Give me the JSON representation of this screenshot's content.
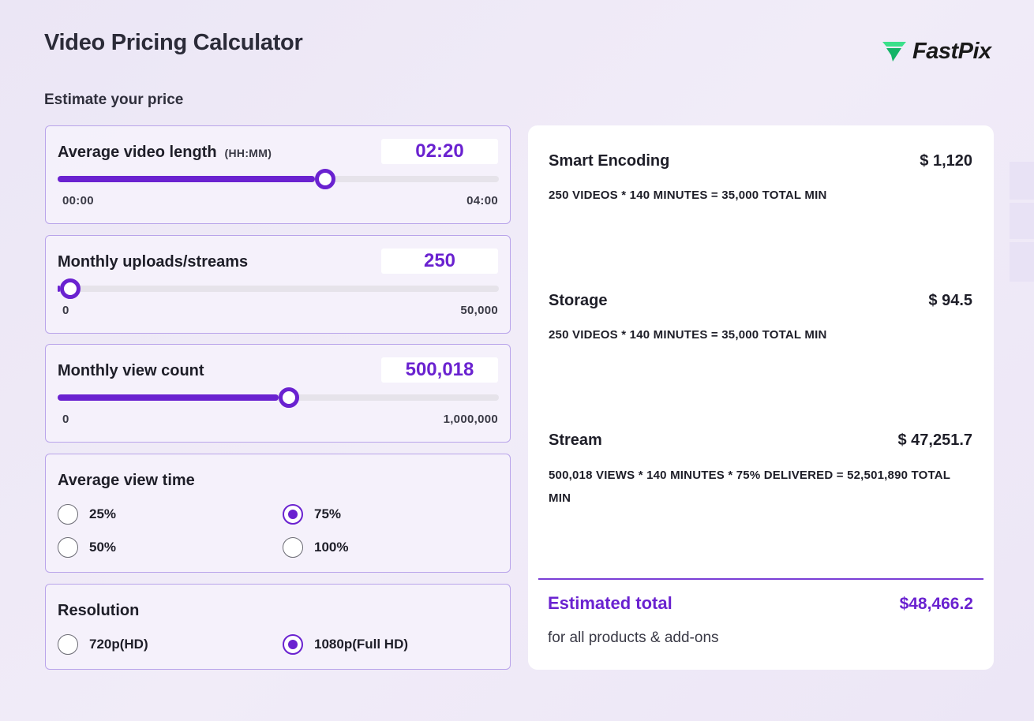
{
  "header": {
    "title": "Video Pricing Calculator",
    "brand": "FastPix",
    "subtitle": "Estimate your price"
  },
  "brand_colors": {
    "accent": "#6a22d0",
    "logo_green_light": "#3be08a",
    "logo_green_dark": "#14b467"
  },
  "icons": {
    "logo": "fastpix-logo-icon"
  },
  "controls": {
    "video_length": {
      "label": "Average video length",
      "hint": "(HH:MM)",
      "value": "02:20",
      "min": "00:00",
      "max": "04:00",
      "fraction": 0.583
    },
    "uploads": {
      "label": "Monthly uploads/streams",
      "value": "250",
      "min": "0",
      "max": "50,000",
      "fraction": 0.005
    },
    "views": {
      "label": "Monthly view count",
      "value": "500,018",
      "min": "0",
      "max": "1,000,000",
      "fraction": 0.5
    },
    "view_time": {
      "label": "Average view time",
      "options": [
        "25%",
        "50%",
        "75%",
        "100%"
      ],
      "selected": "75%"
    },
    "resolution": {
      "label": "Resolution",
      "options": [
        "720p(HD)",
        "1080p(Full HD)"
      ],
      "selected": "1080p(Full HD)"
    }
  },
  "summary": {
    "lines": [
      {
        "name": "Smart Encoding",
        "price": "$ 1,120",
        "desc": "250 VIDEOS * 140 MINUTES = 35,000 TOTAL MIN"
      },
      {
        "name": "Storage",
        "price": "$ 94.5",
        "desc": "250 VIDEOS * 140 MINUTES = 35,000 TOTAL MIN"
      },
      {
        "name": "Stream",
        "price": "$ 47,251.7",
        "desc": "500,018 VIEWS * 140 MINUTES * 75% DELIVERED = 52,501,890 TOTAL MIN"
      }
    ],
    "total_label": "Estimated total",
    "total_value": "$48,466.2",
    "total_note": "for all products & add-ons"
  }
}
